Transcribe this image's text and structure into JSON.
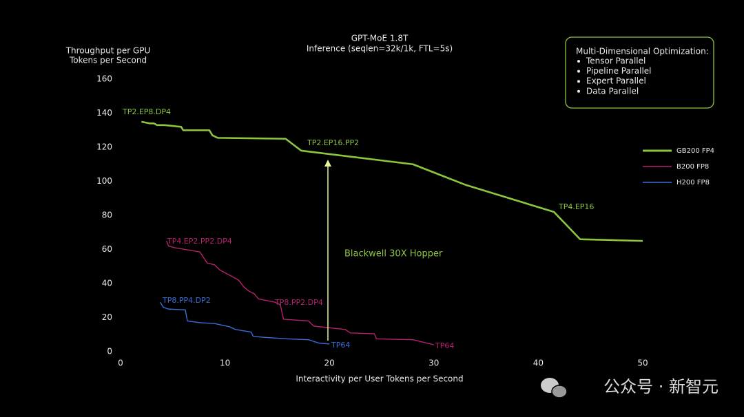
{
  "chart_data": {
    "type": "line",
    "title": [
      "GPT-MoE 1.8T",
      "Inference (seqlen=32k/1k, FTL=5s)"
    ],
    "y_label": [
      "Throughput per GPU",
      "Tokens per Second"
    ],
    "x_label": "Interactivity per User Tokens per Second",
    "xlim": [
      0,
      50
    ],
    "xticks": [
      0,
      10,
      20,
      30,
      40,
      50
    ],
    "ylim": [
      0,
      160
    ],
    "yticks": [
      0,
      20,
      40,
      60,
      80,
      100,
      120,
      140,
      160
    ],
    "series": [
      {
        "name": "GB200 FP4",
        "color": "#8cc63f",
        "x": [
          2.0,
          2.8,
          3.2,
          3.5,
          4.2,
          5.8,
          6.0,
          8.5,
          8.8,
          9.3,
          15.8,
          17.3,
          20,
          28,
          33,
          41.5,
          44,
          50
        ],
        "values": [
          135,
          134,
          134,
          133,
          133,
          132,
          130,
          130,
          127,
          125.5,
          125,
          118,
          116,
          110,
          98,
          82,
          66,
          65
        ]
      },
      {
        "name": "B200 FP8",
        "color": "#b8206f",
        "x": [
          4.4,
          4.6,
          5.2,
          7.6,
          8.3,
          9.0,
          9.5,
          11.3,
          11.8,
          12.3,
          12.8,
          13.2,
          14.8,
          15.3,
          15.6,
          18.0,
          18.5,
          21.5,
          22.0,
          24.3,
          24.5,
          28.0,
          30.0
        ],
        "values": [
          65,
          62,
          61,
          58.5,
          52,
          51,
          48,
          42,
          38,
          35.5,
          34,
          31,
          29,
          27.5,
          19,
          18,
          15,
          13,
          11,
          10.5,
          7.5,
          7,
          4
        ]
      },
      {
        "name": "H200 FP8",
        "color": "#3b6fd8",
        "x": [
          3.8,
          4.1,
          4.6,
          6.2,
          6.4,
          7.6,
          9.0,
          10.5,
          11.0,
          12.5,
          12.7,
          13.5,
          16.0,
          18.0,
          19.0,
          20.0
        ],
        "values": [
          29,
          26,
          25,
          24.5,
          18,
          17,
          16.5,
          14.5,
          13,
          11.5,
          9,
          8.5,
          7.5,
          7,
          5,
          4.5
        ]
      }
    ],
    "annotations": [
      "TP2.EP8.DP4",
      "TP2.EP16.PP2",
      "TP4.EP16",
      "TP4.EP2.PP2.DP4",
      "TP8.PP2.DP4",
      "TP64",
      "TP8.PP4.DP2",
      "TP64",
      "Blackwell 30X Hopper"
    ],
    "info_box": {
      "title": "Multi-Dimensional Optimization:",
      "items": [
        "Tensor Parallel",
        "Pipeline Parallel",
        "Expert Parallel",
        "Data Parallel"
      ]
    },
    "watermark": "公众号 · 新智元"
  }
}
